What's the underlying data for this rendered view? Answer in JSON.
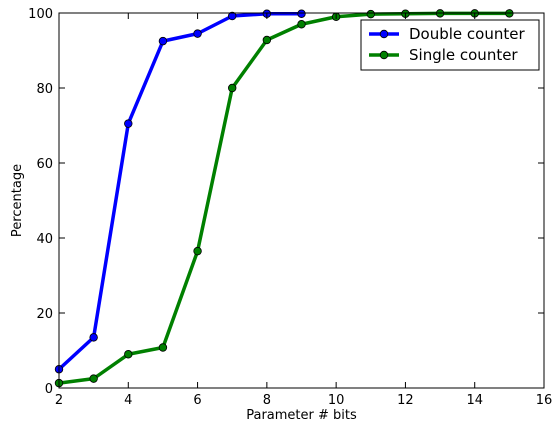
{
  "chart_data": {
    "type": "line",
    "title": "",
    "xlabel": "Parameter # bits",
    "ylabel": "Percentage",
    "xlim": [
      2,
      16
    ],
    "ylim": [
      0,
      100
    ],
    "xticks": [
      2,
      4,
      6,
      8,
      10,
      12,
      14,
      16
    ],
    "yticks": [
      0,
      20,
      40,
      60,
      80,
      100
    ],
    "grid": false,
    "legend_position": "top-right",
    "series": [
      {
        "name": "Double counter",
        "color": "#0000ff",
        "x": [
          2,
          3,
          4,
          5,
          6,
          7,
          8,
          9
        ],
        "y": [
          5,
          13.5,
          70.5,
          92.5,
          94.5,
          99.2,
          99.8,
          99.8
        ]
      },
      {
        "name": "Single counter",
        "color": "#008000",
        "x": [
          2,
          3,
          4,
          5,
          6,
          7,
          8,
          9,
          10,
          11,
          12,
          13,
          14,
          15
        ],
        "y": [
          1.3,
          2.5,
          9,
          10.8,
          36.5,
          80,
          92.8,
          97,
          99,
          99.7,
          99.8,
          99.9,
          99.9,
          99.9
        ]
      }
    ]
  }
}
